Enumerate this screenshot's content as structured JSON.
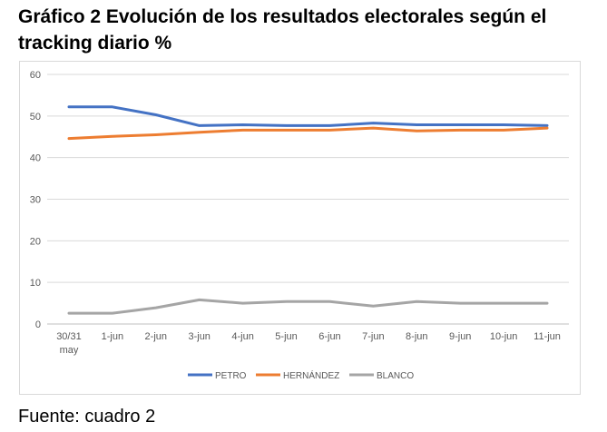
{
  "title": "Gráfico 2 Evolución de los resultados electorales según el tracking diario %",
  "source": "Fuente: cuadro 2",
  "chart_data": {
    "type": "line",
    "title": "",
    "xlabel": "",
    "ylabel": "",
    "ylim": [
      0,
      60
    ],
    "yticks": [
      0,
      10,
      20,
      30,
      40,
      50,
      60
    ],
    "grid": true,
    "legend_position": "bottom",
    "categories": [
      [
        "30/31",
        "may"
      ],
      [
        "1-jun"
      ],
      [
        "2-jun"
      ],
      [
        "3-jun"
      ],
      [
        "4-jun"
      ],
      [
        "5-jun"
      ],
      [
        "6-jun"
      ],
      [
        "7-jun"
      ],
      [
        "8-jun"
      ],
      [
        "9-jun"
      ],
      [
        "10-jun"
      ],
      [
        "11-jun"
      ]
    ],
    "series": [
      {
        "name": "PETRO",
        "color": "#4472c4",
        "values": [
          52.2,
          52.2,
          50.3,
          47.7,
          47.9,
          47.7,
          47.7,
          48.3,
          47.9,
          47.9,
          47.9,
          47.7
        ]
      },
      {
        "name": "HERNÁNDEZ",
        "color": "#ed7d31",
        "values": [
          44.6,
          45.1,
          45.5,
          46.1,
          46.6,
          46.6,
          46.6,
          47.1,
          46.4,
          46.6,
          46.6,
          47.1
        ]
      },
      {
        "name": "BLANCO",
        "color": "#a5a5a5",
        "values": [
          2.6,
          2.6,
          3.9,
          5.8,
          5.0,
          5.4,
          5.4,
          4.3,
          5.4,
          5.0,
          5.0,
          5.0
        ]
      }
    ]
  }
}
